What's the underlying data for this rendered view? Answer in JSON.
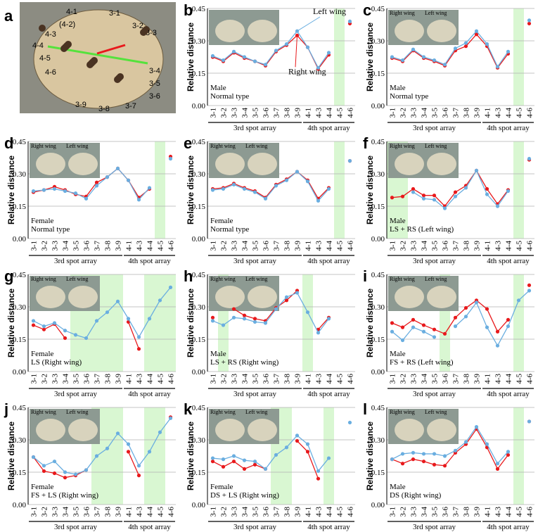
{
  "panel_a": {
    "label": "a",
    "spot_labels": [
      "4-1",
      "(4-2)",
      "4-3",
      "4-4",
      "4-5",
      "4-6",
      "3-1",
      "3-2",
      "3-3",
      "3-4",
      "3-5",
      "3-6",
      "3-7",
      "3-8",
      "3-9"
    ]
  },
  "chart_data": [
    {
      "type": "line",
      "panel": "b",
      "legend": "callout",
      "annotation": [
        "Male",
        "Normal type"
      ],
      "shaded": [
        "4-5"
      ],
      "series": [
        {
          "name": "Right wing",
          "color": "#e8191c",
          "values": [
            0.225,
            0.205,
            0.245,
            0.22,
            0.205,
            0.185,
            0.25,
            0.28,
            0.325,
            0.27,
            0.17,
            0.235,
            null,
            0.38
          ]
        },
        {
          "name": "Left wing",
          "color": "#6aaee0",
          "values": [
            0.23,
            0.21,
            0.25,
            0.225,
            0.205,
            0.19,
            0.255,
            0.285,
            0.345,
            0.27,
            0.175,
            0.245,
            null,
            0.39
          ]
        }
      ]
    },
    {
      "type": "line",
      "panel": "c",
      "legend": "inset",
      "annotation": [
        "Male",
        "Normal type"
      ],
      "shaded": [
        "4-5"
      ],
      "series": [
        {
          "name": "Right wing",
          "color": "#e8191c",
          "values": [
            0.22,
            0.205,
            0.255,
            0.22,
            0.205,
            0.185,
            0.255,
            0.275,
            0.33,
            0.275,
            0.175,
            0.24,
            null,
            0.38
          ]
        },
        {
          "name": "Left wing",
          "color": "#6aaee0",
          "values": [
            0.225,
            0.21,
            0.26,
            0.225,
            0.21,
            0.19,
            0.265,
            0.29,
            0.345,
            0.285,
            0.18,
            0.25,
            null,
            0.395
          ]
        }
      ]
    },
    {
      "type": "line",
      "panel": "d",
      "legend": "inset",
      "annotation": [
        "Female",
        "Normal type"
      ],
      "shaded": [
        "4-5"
      ],
      "series": [
        {
          "name": "Right wing",
          "color": "#e8191c",
          "values": [
            0.215,
            0.225,
            0.24,
            0.225,
            0.205,
            0.195,
            0.26,
            0.285,
            0.325,
            0.27,
            0.19,
            0.23,
            null,
            0.38
          ]
        },
        {
          "name": "Left wing",
          "color": "#6aaee0",
          "values": [
            0.22,
            0.225,
            0.23,
            0.22,
            0.21,
            0.185,
            0.245,
            0.285,
            0.325,
            0.27,
            0.18,
            0.235,
            null,
            0.37
          ]
        }
      ]
    },
    {
      "type": "line",
      "panel": "e",
      "legend": "inset",
      "annotation": [
        "Female",
        "Normal type"
      ],
      "shaded": [
        "4-5"
      ],
      "series": [
        {
          "name": "Right wing",
          "color": "#e8191c",
          "values": [
            0.23,
            0.235,
            0.255,
            0.235,
            0.22,
            0.19,
            0.25,
            0.275,
            0.31,
            0.27,
            0.185,
            0.235,
            null,
            0.36
          ]
        },
        {
          "name": "Left wing",
          "color": "#6aaee0",
          "values": [
            0.225,
            0.23,
            0.25,
            0.23,
            0.215,
            0.185,
            0.245,
            0.27,
            0.31,
            0.265,
            0.175,
            0.23,
            null,
            0.36
          ]
        }
      ]
    },
    {
      "type": "line",
      "panel": "f",
      "legend": "inset",
      "annotation": [
        "Male",
        "LS + RS (Left wing)"
      ],
      "shaded": [
        "3-1",
        "3-2",
        "4-5"
      ],
      "series": [
        {
          "name": "Right wing",
          "color": "#e8191c",
          "values": [
            0.19,
            0.195,
            0.23,
            0.2,
            0.2,
            0.15,
            0.215,
            0.245,
            0.315,
            0.23,
            0.16,
            0.225,
            null,
            0.365
          ]
        },
        {
          "name": "Left wing",
          "color": "#6aaee0",
          "values": [
            null,
            null,
            0.215,
            0.185,
            0.18,
            0.14,
            0.195,
            0.235,
            0.315,
            0.205,
            0.15,
            0.22,
            null,
            0.37
          ]
        }
      ]
    },
    {
      "type": "line",
      "panel": "g",
      "legend": "inset",
      "annotation": [
        "Female",
        "LS (Right wing)"
      ],
      "shaded": [
        "3-5",
        "3-6",
        "3-7",
        "3-8",
        "3-9",
        "4-4",
        "4-5",
        "4-6"
      ],
      "series": [
        {
          "name": "Right wing",
          "color": "#e8191c",
          "values": [
            0.215,
            0.195,
            0.22,
            0.155,
            null,
            null,
            null,
            null,
            null,
            0.23,
            0.105,
            null,
            null,
            null
          ]
        },
        {
          "name": "Left wing",
          "color": "#6aaee0",
          "values": [
            0.235,
            0.21,
            0.225,
            0.19,
            0.17,
            0.155,
            0.235,
            0.275,
            0.325,
            0.245,
            0.16,
            0.245,
            0.33,
            0.39
          ]
        }
      ]
    },
    {
      "type": "line",
      "panel": "h",
      "legend": "inset",
      "annotation": [
        "Male",
        "LS + RS (Right wing)"
      ],
      "shaded": [
        "3-2",
        "4-1"
      ],
      "series": [
        {
          "name": "Right wing",
          "color": "#e8191c",
          "values": [
            0.25,
            null,
            0.29,
            0.26,
            0.245,
            0.235,
            0.295,
            0.33,
            0.375,
            null,
            0.195,
            0.25,
            null,
            null
          ]
        },
        {
          "name": "Left wing",
          "color": "#6aaee0",
          "values": [
            0.235,
            0.215,
            0.25,
            0.245,
            0.23,
            0.225,
            0.29,
            0.345,
            0.365,
            0.275,
            0.18,
            0.245,
            null,
            null
          ]
        }
      ]
    },
    {
      "type": "line",
      "panel": "i",
      "legend": "inset",
      "annotation": [
        "Male",
        "FS + RS (Left wing)"
      ],
      "shaded": [
        "3-6",
        "4-5"
      ],
      "series": [
        {
          "name": "Right wing",
          "color": "#e8191c",
          "values": [
            0.225,
            0.205,
            0.24,
            0.215,
            0.195,
            0.175,
            0.25,
            0.295,
            0.33,
            0.29,
            0.185,
            0.24,
            null,
            0.4
          ]
        },
        {
          "name": "Left wing",
          "color": "#6aaee0",
          "values": [
            0.185,
            0.145,
            0.205,
            0.185,
            0.16,
            null,
            0.21,
            0.255,
            0.32,
            0.205,
            0.12,
            0.21,
            0.33,
            0.375
          ]
        }
      ]
    },
    {
      "type": "line",
      "panel": "j",
      "legend": "inset",
      "annotation": [
        "Female",
        "FS + LS (Right wing)"
      ],
      "shaded": [
        "3-7",
        "3-8",
        "3-9",
        "4-4",
        "4-5"
      ],
      "series": [
        {
          "name": "Right wing",
          "color": "#e8191c",
          "values": [
            0.22,
            0.155,
            0.145,
            0.125,
            0.135,
            0.16,
            null,
            null,
            null,
            0.245,
            0.135,
            null,
            null,
            0.405
          ]
        },
        {
          "name": "Left wing",
          "color": "#6aaee0",
          "values": [
            0.22,
            0.18,
            0.2,
            0.15,
            0.14,
            0.16,
            0.225,
            0.26,
            0.33,
            0.28,
            0.18,
            0.245,
            0.335,
            0.4
          ]
        }
      ]
    },
    {
      "type": "line",
      "panel": "k",
      "legend": "inset",
      "annotation": [
        "Female",
        "DS + LS (Right wing)"
      ],
      "shaded": [
        "3-7",
        "3-8",
        "4-4"
      ],
      "series": [
        {
          "name": "Right wing",
          "color": "#e8191c",
          "values": [
            0.2,
            0.175,
            0.2,
            0.165,
            0.185,
            0.165,
            null,
            null,
            0.295,
            0.245,
            0.12,
            null,
            null,
            null
          ]
        },
        {
          "name": "Left wing",
          "color": "#6aaee0",
          "values": [
            0.215,
            0.21,
            0.225,
            0.205,
            0.2,
            0.165,
            0.23,
            0.265,
            0.32,
            0.28,
            0.155,
            0.215,
            null,
            0.38
          ]
        }
      ]
    },
    {
      "type": "line",
      "panel": "l",
      "legend": "inset",
      "annotation": [
        "Male",
        "DS  (Right wing)"
      ],
      "shaded": [
        "4-5"
      ],
      "series": [
        {
          "name": "Right wing",
          "color": "#e8191c",
          "values": [
            0.21,
            0.19,
            0.21,
            0.2,
            0.185,
            0.18,
            0.24,
            0.28,
            0.35,
            0.265,
            0.165,
            0.23,
            null,
            0.385
          ]
        },
        {
          "name": "Left wing",
          "color": "#6aaee0",
          "values": [
            0.21,
            0.235,
            0.24,
            0.235,
            0.235,
            0.225,
            0.25,
            0.29,
            0.36,
            0.28,
            0.19,
            0.245,
            null,
            0.385
          ]
        }
      ]
    }
  ],
  "axes": {
    "categories": [
      "3-1",
      "3-2",
      "3-3",
      "3-4",
      "3-5",
      "3-6",
      "3-7",
      "3-8",
      "3-9",
      "4-1",
      "4-3",
      "4-4",
      "4-5",
      "4-6"
    ],
    "ylabel": "Relative distance",
    "ylim": [
      0,
      0.45
    ],
    "yticks": [
      {
        "value": 0,
        "label": "0.00"
      },
      0.15,
      {
        "value": 0.3,
        "label": "0.30"
      },
      0.45
    ],
    "grid": true,
    "groups": [
      {
        "label": "3rd spot array",
        "from": "3-1",
        "to": "3-9"
      },
      {
        "label": "4th spot array",
        "from": "4-1",
        "to": "4-6"
      }
    ]
  }
}
